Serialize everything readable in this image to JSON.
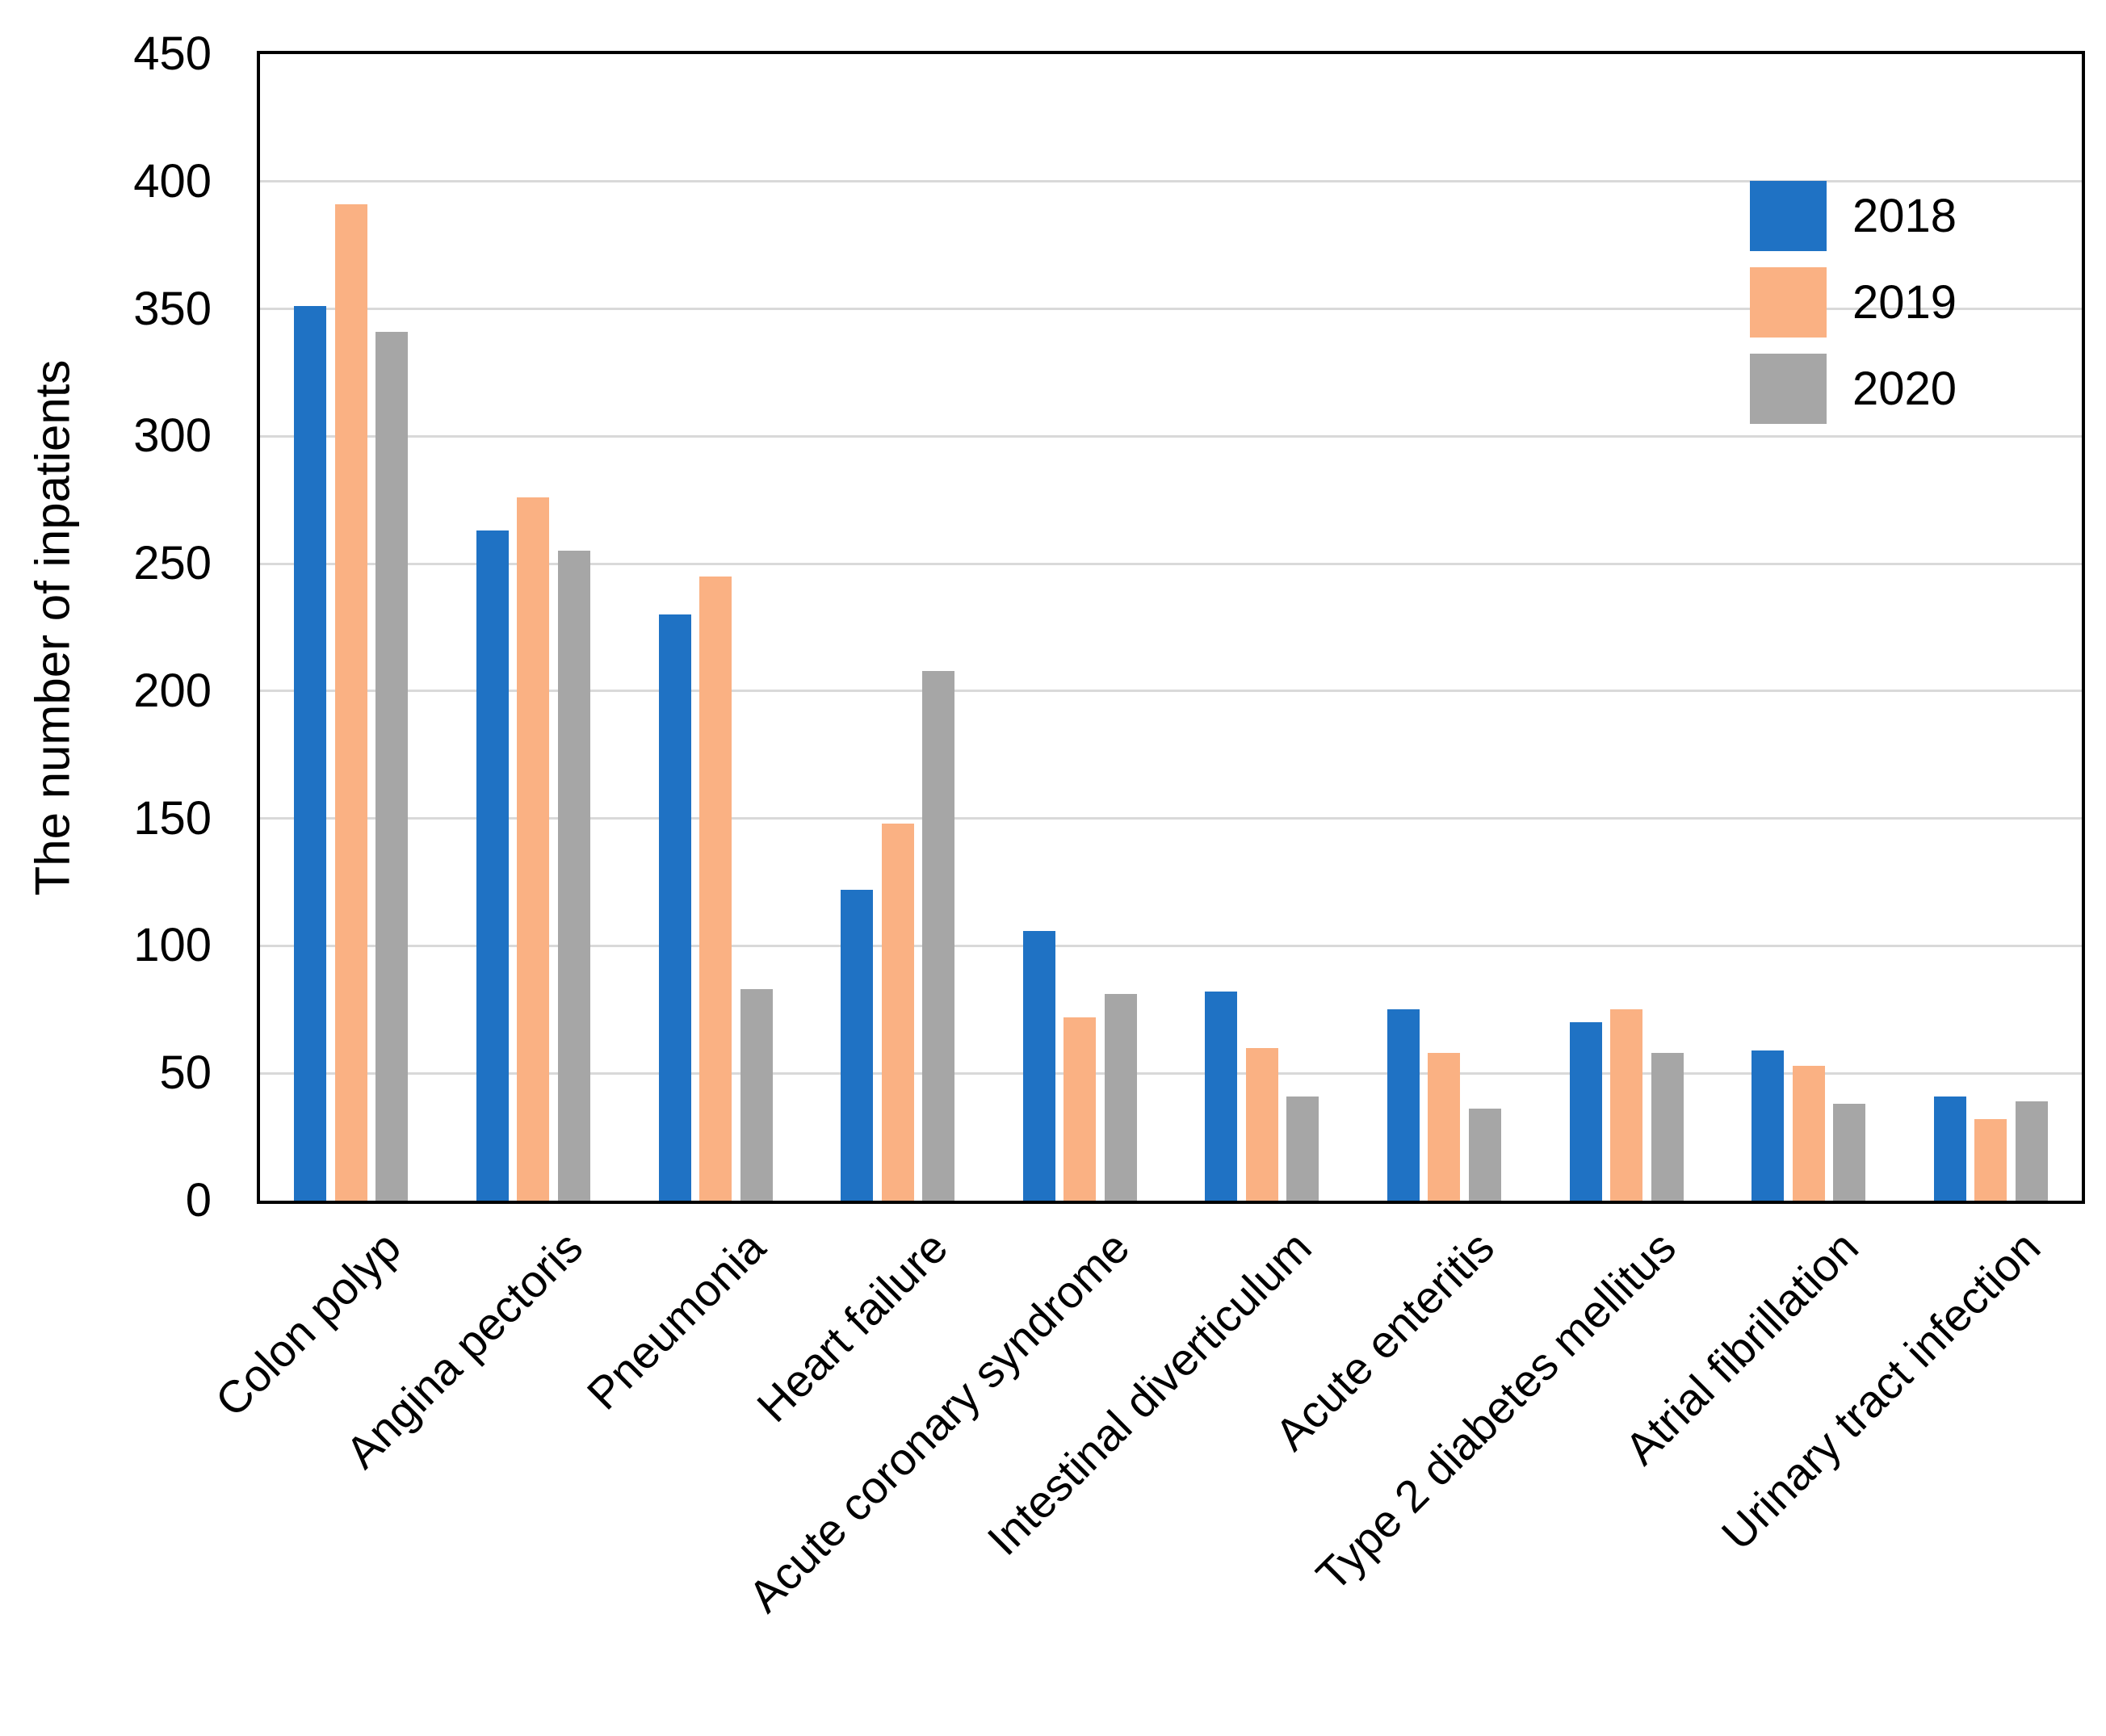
{
  "chart_data": {
    "type": "bar",
    "title": "",
    "xlabel": "",
    "ylabel": "The number of inpatients",
    "ylim": [
      0,
      450
    ],
    "yticks": [
      0,
      50,
      100,
      150,
      200,
      250,
      300,
      350,
      400,
      450
    ],
    "grid": "horizontal gridlines every 50, light gray, plot box framed in black",
    "legend_position": "top-right inside plot area",
    "categories": [
      "Colon polyp",
      "Angina pectoris",
      "Pneumonia",
      "Heart failure",
      "Acute coronary syndrome",
      "Intestinal diverticulum",
      "Acute enteritis",
      "Type 2 diabetes mellitus",
      "Atrial fibrillation",
      "Urinary tract infection"
    ],
    "series": [
      {
        "name": "2018",
        "color": "#1F72C4",
        "values": [
          351,
          263,
          230,
          122,
          106,
          82,
          75,
          70,
          59,
          41
        ]
      },
      {
        "name": "2019",
        "color": "#FAB183",
        "values": [
          391,
          276,
          245,
          148,
          72,
          60,
          58,
          75,
          53,
          32
        ]
      },
      {
        "name": "2020",
        "color": "#A6A6A6",
        "values": [
          341,
          255,
          83,
          208,
          81,
          41,
          36,
          58,
          38,
          39
        ]
      }
    ],
    "colors": {
      "axis": "#000000",
      "gridline": "#D9D9D9",
      "background": "#FFFFFF",
      "text": "#000000"
    }
  }
}
